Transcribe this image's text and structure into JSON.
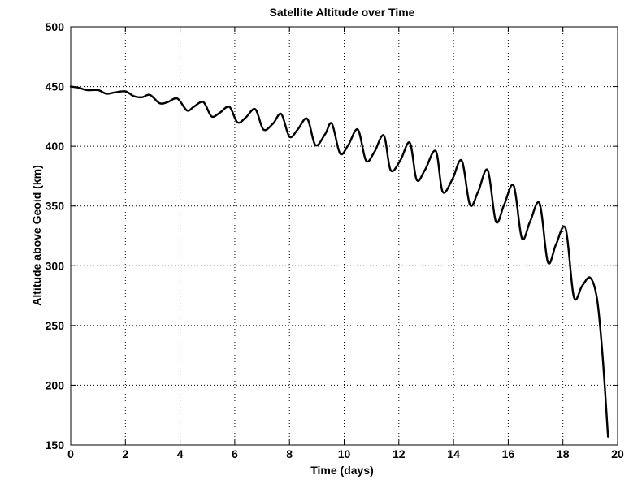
{
  "chart_data": {
    "type": "line",
    "title": "Satellite Altitude over Time",
    "xlabel": "Time (days)",
    "ylabel": "Altitude above Geoid (km)",
    "xlim": [
      0,
      20
    ],
    "ylim": [
      150,
      500
    ],
    "xticks": [
      0,
      2,
      4,
      6,
      8,
      10,
      12,
      14,
      16,
      18,
      20
    ],
    "yticks": [
      150,
      200,
      250,
      300,
      350,
      400,
      450,
      500
    ],
    "grid": true,
    "grid_style": "dotted",
    "line_color": "#000000",
    "series": [
      {
        "x": [
          0,
          0.3,
          0.6,
          1.0,
          1.3,
          1.6,
          2.0,
          2.3,
          2.6,
          2.9,
          3.25,
          3.55,
          3.9,
          4.25,
          4.5,
          4.85,
          5.15,
          5.45,
          5.8,
          6.1,
          6.4,
          6.75,
          7.05,
          7.4,
          7.7,
          8.0,
          8.3,
          8.65,
          8.95,
          9.3,
          9.55,
          9.85,
          10.15,
          10.5,
          10.8,
          11.1,
          11.45,
          11.7,
          12.05,
          12.4,
          12.65,
          12.95,
          13.35,
          13.6,
          13.95,
          14.3,
          14.6,
          14.9,
          15.25,
          15.55,
          15.85,
          16.2,
          16.5,
          16.8,
          17.15,
          17.45,
          17.75,
          18.1,
          18.4,
          18.7,
          19.0,
          19.25,
          19.45,
          19.65
        ],
        "y": [
          450,
          449,
          447,
          447,
          444,
          445,
          446,
          442,
          441,
          443,
          436,
          437,
          440,
          430,
          433,
          437,
          425,
          428,
          433,
          420,
          424,
          431,
          414,
          419,
          427,
          408,
          414,
          423,
          401,
          410,
          419,
          394,
          401,
          414,
          388,
          395,
          409,
          380,
          388,
          403,
          372,
          380,
          396,
          362,
          372,
          388,
          351,
          362,
          380,
          337,
          351,
          367,
          323,
          337,
          352,
          303,
          318,
          331,
          274,
          283,
          290,
          272,
          225,
          157
        ]
      }
    ]
  }
}
